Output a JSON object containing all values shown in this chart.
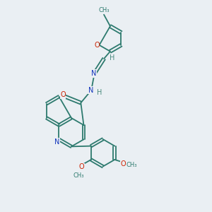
{
  "bg_color": "#eaeff3",
  "bond_color": "#2d7a6e",
  "nitrogen_color": "#1133bb",
  "oxygen_color": "#cc2200",
  "hydrogen_color": "#4a8a7e",
  "figsize": [
    3.0,
    3.0
  ],
  "dpi": 100,
  "xlim": [
    0,
    10
  ],
  "ylim": [
    0,
    10
  ],
  "lw": 1.3,
  "fs": 7.0,
  "fs_small": 6.0
}
